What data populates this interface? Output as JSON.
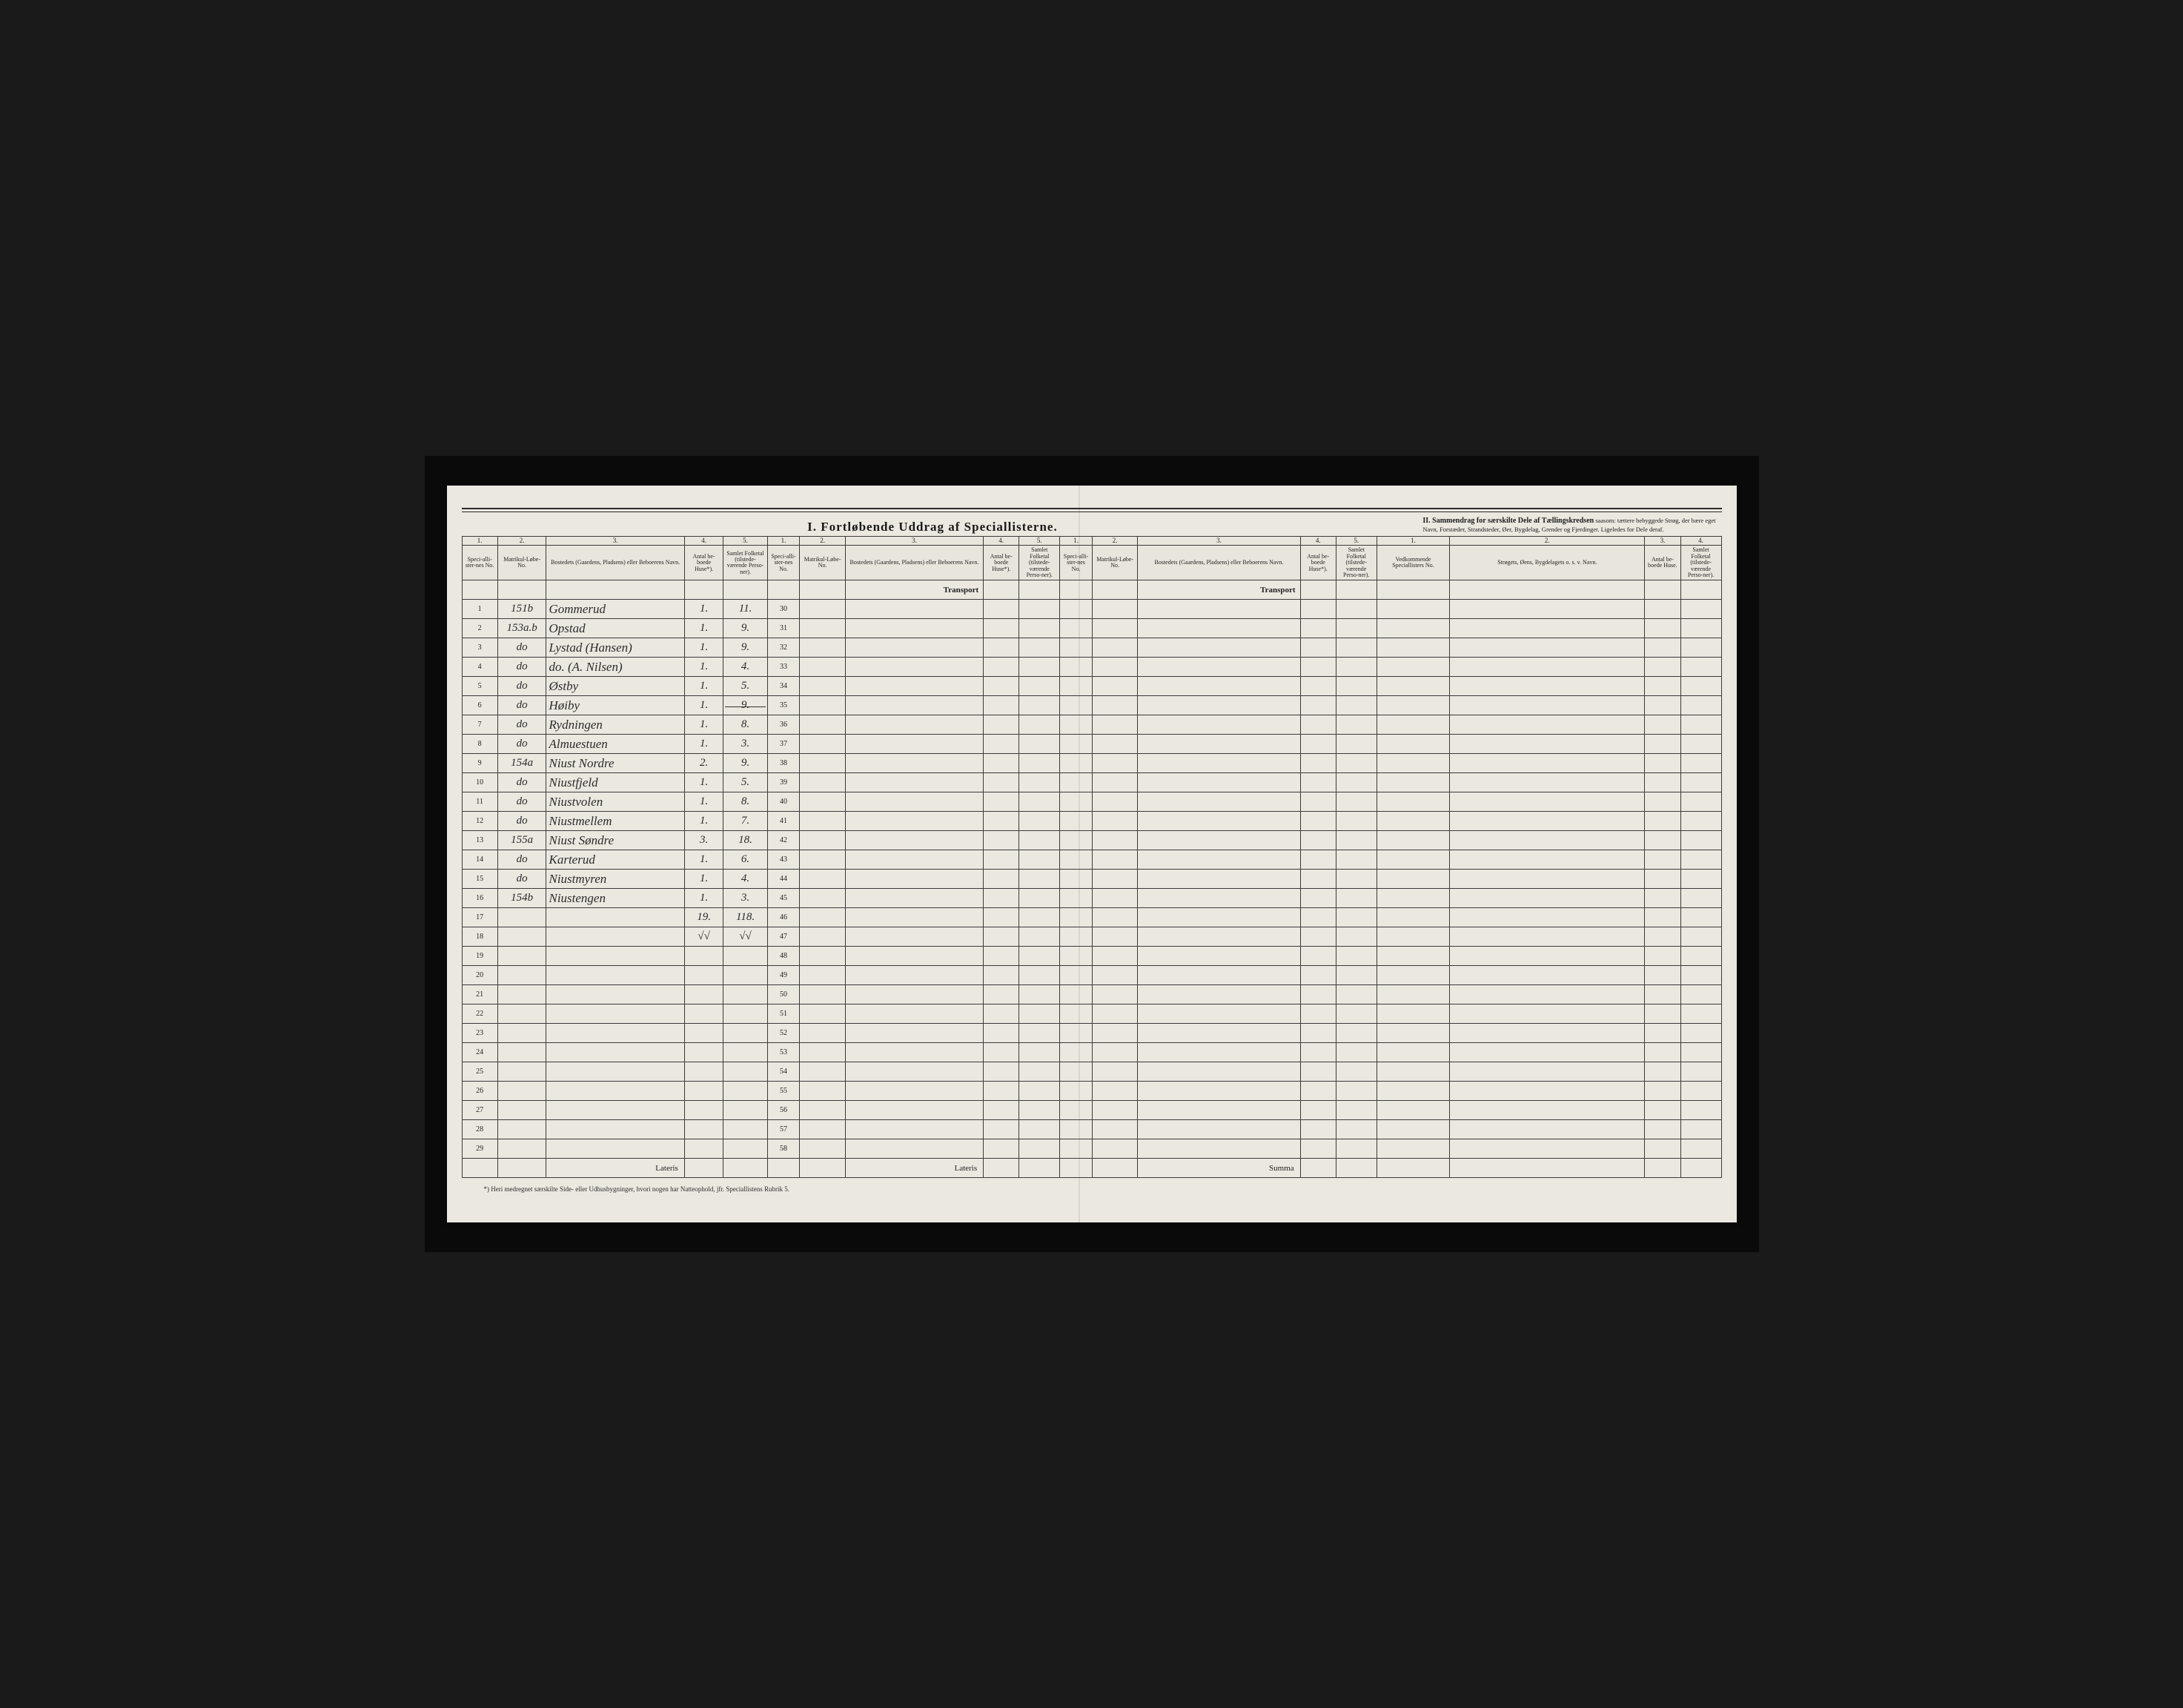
{
  "header": {
    "section1_title": "I.  Fortløbende  Uddrag  af  Speciallisterne.",
    "section2_bold": "II.  Sammendrag  for  særskilte  Dele  af  Tællingskredsen",
    "section2_rest": " saasom: tættere bebyggede Strøg, der bære eget Navn, Forstæder, Strandsteder, Øer, Bygdelag, Grender og Fjerdinger. Ligeledes for Dele deraf."
  },
  "col_nums": [
    "1.",
    "2.",
    "3.",
    "4.",
    "5.",
    "1.",
    "2.",
    "3.",
    "4.",
    "5.",
    "1.",
    "2.",
    "3.",
    "4.",
    "5.",
    "1.",
    "2.",
    "3.",
    "4."
  ],
  "col_labels": {
    "spec": "Speci-alli-ster-nes No.",
    "matr": "Matrikul-Løbe-No.",
    "place": "Bostedets (Gaardens, Pladsens) eller Beboerens Navn.",
    "huse": "Antal be-boede Huse*).",
    "folk": "Samlet Folketal (tilstede-værende Perso-ner).",
    "vedk": "Vedkommende Speciallisters No.",
    "strog": "Strøgets, Øens, Bygdelagets o. s. v. Navn.",
    "huse4": "Antal be-boede Huse.",
    "folk4": "Samlet Folketal (tilstede-værende Perso-ner)."
  },
  "transport_label": "Transport",
  "lateris_label": "Lateris",
  "summa_label": "Summa",
  "footnote": "*) Heri medregnet særskilte Side- eller Udhusbygninger, hvori nogen har Natteophold, jfr. Speciallistens Rubrik 5.",
  "rows": [
    {
      "n": 1,
      "matr": "151b",
      "place": "Gommerud",
      "huse": "1.",
      "folk": "11.",
      "n2": 30
    },
    {
      "n": 2,
      "matr": "153a.b",
      "place": "Opstad",
      "huse": "1.",
      "folk": "9.",
      "n2": 31
    },
    {
      "n": 3,
      "matr": "do",
      "place": "Lystad (Hansen)",
      "huse": "1.",
      "folk": "9.",
      "n2": 32
    },
    {
      "n": 4,
      "matr": "do",
      "place": "do.  (A. Nilsen)",
      "huse": "1.",
      "folk": "4.",
      "n2": 33
    },
    {
      "n": 5,
      "matr": "do",
      "place": "Østby",
      "huse": "1.",
      "folk": "5.",
      "n2": 34
    },
    {
      "n": 6,
      "matr": "do",
      "place": "Høiby",
      "huse": "1.",
      "folk": "9.",
      "n2": 35,
      "folk_strike": true
    },
    {
      "n": 7,
      "matr": "do",
      "place": "Rydningen",
      "huse": "1.",
      "folk": "8.",
      "n2": 36
    },
    {
      "n": 8,
      "matr": "do",
      "place": "Almuestuen",
      "huse": "1.",
      "folk": "3.",
      "n2": 37
    },
    {
      "n": 9,
      "matr": "154a",
      "place": "Niust  Nordre",
      "huse": "2.",
      "folk": "9.",
      "n2": 38
    },
    {
      "n": 10,
      "matr": "do",
      "place": "Niustfjeld",
      "huse": "1.",
      "folk": "5.",
      "n2": 39
    },
    {
      "n": 11,
      "matr": "do",
      "place": "Niustvolen",
      "huse": "1.",
      "folk": "8.",
      "n2": 40
    },
    {
      "n": 12,
      "matr": "do",
      "place": "Niustmellem",
      "huse": "1.",
      "folk": "7.",
      "n2": 41
    },
    {
      "n": 13,
      "matr": "155a",
      "place": "Niust  Søndre",
      "huse": "3.",
      "folk": "18.",
      "n2": 42
    },
    {
      "n": 14,
      "matr": "do",
      "place": "Karterud",
      "huse": "1.",
      "folk": "6.",
      "n2": 43
    },
    {
      "n": 15,
      "matr": "do",
      "place": "Niustmyren",
      "huse": "1.",
      "folk": "4.",
      "n2": 44
    },
    {
      "n": 16,
      "matr": "154b",
      "place": "Niustengen",
      "huse": "1.",
      "folk": "3.",
      "n2": 45
    },
    {
      "n": 17,
      "matr": "",
      "place": "",
      "huse": "19.",
      "folk": "118.",
      "n2": 46
    },
    {
      "n": 18,
      "matr": "",
      "place": "",
      "huse": "√√",
      "folk": "√√",
      "n2": 47
    },
    {
      "n": 19,
      "matr": "",
      "place": "",
      "huse": "",
      "folk": "",
      "n2": 48
    },
    {
      "n": 20,
      "matr": "",
      "place": "",
      "huse": "",
      "folk": "",
      "n2": 49
    },
    {
      "n": 21,
      "matr": "",
      "place": "",
      "huse": "",
      "folk": "",
      "n2": 50
    },
    {
      "n": 22,
      "matr": "",
      "place": "",
      "huse": "",
      "folk": "",
      "n2": 51
    },
    {
      "n": 23,
      "matr": "",
      "place": "",
      "huse": "",
      "folk": "",
      "n2": 52
    },
    {
      "n": 24,
      "matr": "",
      "place": "",
      "huse": "",
      "folk": "",
      "n2": 53
    },
    {
      "n": 25,
      "matr": "",
      "place": "",
      "huse": "",
      "folk": "",
      "n2": 54
    },
    {
      "n": 26,
      "matr": "",
      "place": "",
      "huse": "",
      "folk": "",
      "n2": 55
    },
    {
      "n": 27,
      "matr": "",
      "place": "",
      "huse": "",
      "folk": "",
      "n2": 56
    },
    {
      "n": 28,
      "matr": "",
      "place": "",
      "huse": "",
      "folk": "",
      "n2": 57
    },
    {
      "n": 29,
      "matr": "",
      "place": "",
      "huse": "",
      "folk": "",
      "n2": 58
    }
  ]
}
